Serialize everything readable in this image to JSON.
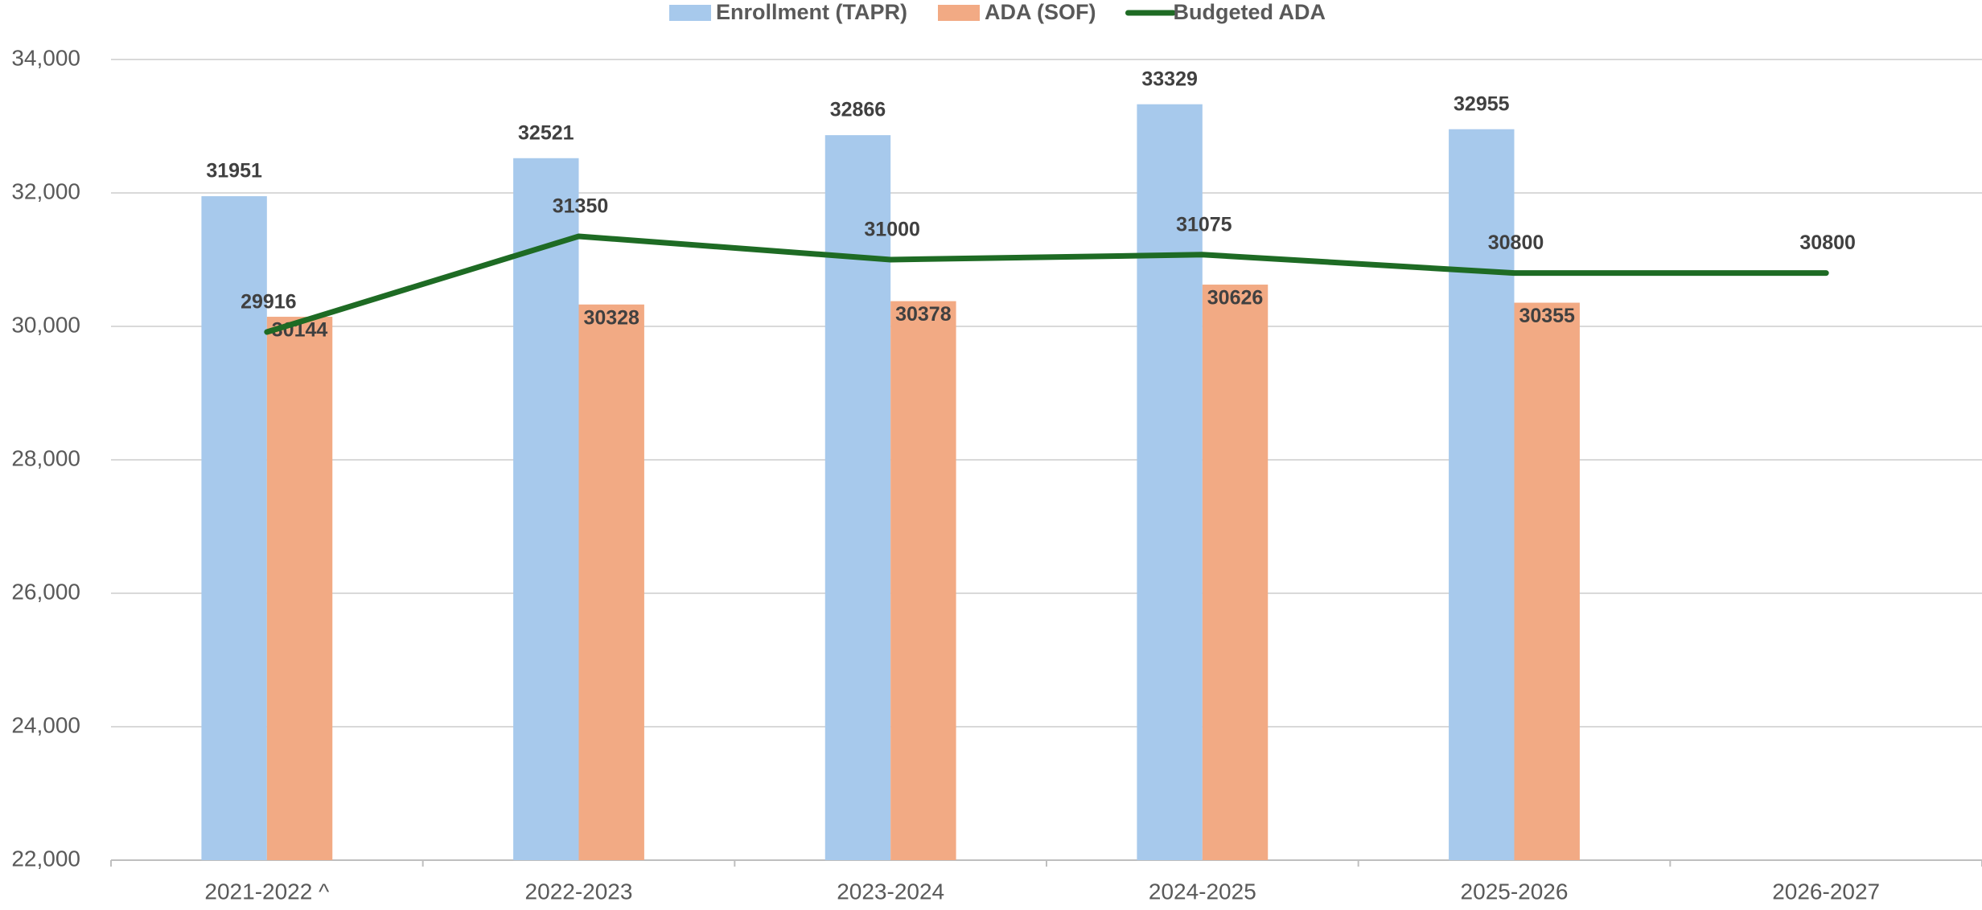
{
  "chart_data": {
    "type": "bar_line",
    "categories": [
      "2021-2022  ^",
      "2022-2023",
      "2023-2024",
      "2024-2025",
      "2025-2026",
      "2026-2027"
    ],
    "series": [
      {
        "name": "Enrollment (TAPR)",
        "type": "bar",
        "color": "#a7c9ec",
        "values": [
          31951,
          32521,
          32866,
          33329,
          32955,
          null
        ]
      },
      {
        "name": "ADA (SOF)",
        "type": "bar",
        "color": "#f2aa84",
        "values": [
          30144,
          30328,
          30378,
          30626,
          30355,
          null
        ]
      },
      {
        "name": "Budgeted ADA",
        "type": "line",
        "color": "#1e6b24",
        "values": [
          29916,
          31350,
          31000,
          31075,
          30800,
          30800
        ]
      }
    ],
    "ylim": [
      22000,
      34000
    ],
    "yticks": [
      {
        "value": 22000,
        "label": "22,000"
      },
      {
        "value": 24000,
        "label": "24,000"
      },
      {
        "value": 26000,
        "label": "26,000"
      },
      {
        "value": 28000,
        "label": "28,000"
      },
      {
        "value": 30000,
        "label": "30,000"
      },
      {
        "value": 32000,
        "label": "32,000"
      },
      {
        "value": 34000,
        "label": "34,000"
      }
    ],
    "grid": true,
    "legend": "top"
  }
}
